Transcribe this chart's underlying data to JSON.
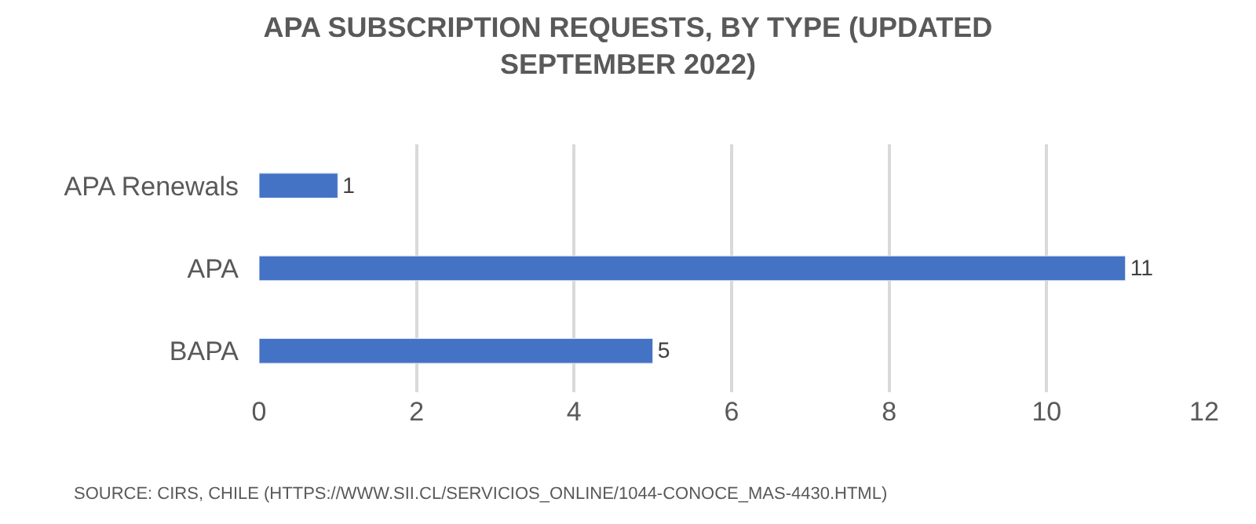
{
  "chart_data": {
    "type": "bar",
    "orientation": "horizontal",
    "title": "APA SUBSCRIPTION REQUESTS, BY TYPE (UPDATED SEPTEMBER 2022)",
    "categories": [
      "APA Renewals",
      "APA",
      "BAPA"
    ],
    "values": [
      1,
      11,
      5
    ],
    "color": "#4472c4",
    "xlim": [
      0,
      12
    ],
    "xticks": [
      0,
      2,
      4,
      6,
      8,
      10,
      12
    ],
    "grid": "x",
    "data_labels": true,
    "annotations": [
      "SOURCE: CIRS, CHILE (HTTPS://WWW.SII.CL/SERVICIOS_ONLINE/1044-CONOCE_MAS-4430.HTML)"
    ]
  }
}
